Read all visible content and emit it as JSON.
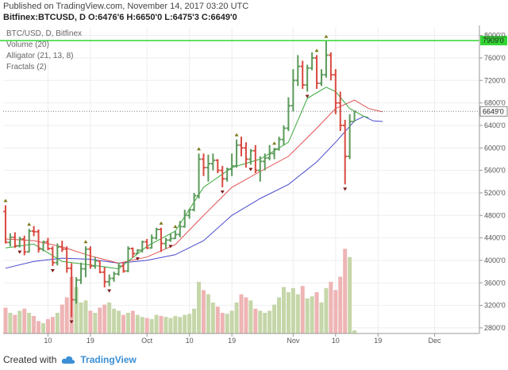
{
  "header": {
    "published": "Published on TradingView.com, November 14, 2017 03:20 UTC",
    "symbol_line": "Bitfinex:BTCUSD, D  O:6476'6 H:6650'0 L:6475'3 C:6649'0"
  },
  "footer": {
    "prefix": "Created with",
    "brand": "TradingView"
  },
  "colors": {
    "up": "#5b9a5b",
    "down": "#d9493f",
    "jaw": "#4a4ad0",
    "teeth": "#e05050",
    "lips": "#3aa83a",
    "vol_up": "#c5d6a8",
    "vol_down": "#eeb4b4",
    "hline": "#33d633",
    "price_line": "#808080"
  },
  "chart_data": {
    "type": "candlestick-ohlc",
    "legend": [
      "BTC/USD, D, Bitfinex",
      "Volume (20)",
      "Alligator (21, 13, 8)",
      "Fractals (2)"
    ],
    "y_ticks": [
      2800,
      3200,
      3600,
      4000,
      4400,
      4800,
      5200,
      5600,
      6000,
      6400,
      6800,
      7200,
      7600,
      8000
    ],
    "y_tick_labels": [
      "2800'0",
      "3200'0",
      "3600'0",
      "4000'0",
      "4400'0",
      "4800'0",
      "5200'0",
      "5600'0",
      "6000'0",
      "6400'0",
      "6800'0",
      "7200'0",
      "7600'0",
      "8000'0"
    ],
    "ylim": [
      2700,
      8150
    ],
    "x_labels": [
      {
        "label": "10",
        "idx": 9
      },
      {
        "label": "19",
        "idx": 18
      },
      {
        "label": "Oct",
        "idx": 30
      },
      {
        "label": "10",
        "idx": 39
      },
      {
        "label": "19",
        "idx": 48
      },
      {
        "label": "Nov",
        "idx": 61
      },
      {
        "label": "10",
        "idx": 70
      },
      {
        "label": "19",
        "idx": 79
      },
      {
        "label": "Dec",
        "idx": 91
      }
    ],
    "x_count": 101,
    "horizontal_line": {
      "value": 7909,
      "label": "7909'0"
    },
    "last_price": {
      "value": 6649,
      "label": "6649'0"
    },
    "ohlc": [
      [
        4870,
        4980,
        4300,
        4320
      ],
      [
        4320,
        4480,
        4250,
        4410
      ],
      [
        4410,
        4500,
        4220,
        4260
      ],
      [
        4260,
        4420,
        4230,
        4380
      ],
      [
        4380,
        4440,
        4090,
        4150
      ],
      [
        4150,
        4560,
        4140,
        4520
      ],
      [
        4520,
        4610,
        4430,
        4510
      ],
      [
        4510,
        4550,
        4140,
        4200
      ],
      [
        4200,
        4350,
        4160,
        4330
      ],
      [
        4330,
        4400,
        4180,
        4210
      ],
      [
        4210,
        4250,
        3900,
        3960
      ],
      [
        3960,
        4300,
        3910,
        4240
      ],
      [
        4240,
        4350,
        4150,
        4200
      ],
      [
        4200,
        4250,
        3780,
        3860
      ],
      [
        3860,
        3950,
        2990,
        3300
      ],
      [
        3300,
        3700,
        3230,
        3650
      ],
      [
        3650,
        3960,
        3580,
        3850
      ],
      [
        3850,
        4250,
        3700,
        4200
      ],
      [
        4200,
        4250,
        3850,
        3900
      ],
      [
        3900,
        4060,
        3850,
        3990
      ],
      [
        3990,
        4000,
        3770,
        3790
      ],
      [
        3790,
        3880,
        3520,
        3620
      ],
      [
        3620,
        3750,
        3540,
        3680
      ],
      [
        3680,
        3800,
        3620,
        3760
      ],
      [
        3760,
        3960,
        3730,
        3900
      ],
      [
        3900,
        3960,
        3780,
        3810
      ],
      [
        3810,
        4250,
        3790,
        4210
      ],
      [
        4210,
        4230,
        4050,
        4120
      ],
      [
        4120,
        4200,
        4110,
        4180
      ],
      [
        4180,
        4350,
        4140,
        4330
      ],
      [
        4330,
        4380,
        4200,
        4220
      ],
      [
        4220,
        4460,
        4210,
        4400
      ],
      [
        4400,
        4580,
        4370,
        4550
      ],
      [
        4550,
        4580,
        4150,
        4300
      ],
      [
        4300,
        4400,
        4200,
        4360
      ],
      [
        4360,
        4480,
        4330,
        4390
      ],
      [
        4390,
        4520,
        4380,
        4460
      ],
      [
        4460,
        4700,
        4410,
        4600
      ],
      [
        4600,
        4900,
        4580,
        4800
      ],
      [
        4800,
        4920,
        4740,
        4900
      ],
      [
        4900,
        5200,
        4870,
        5150
      ],
      [
        5150,
        5900,
        5100,
        5800
      ],
      [
        5800,
        5900,
        5500,
        5650
      ],
      [
        5650,
        5880,
        5400,
        5720
      ],
      [
        5720,
        5900,
        5600,
        5780
      ],
      [
        5780,
        5800,
        5550,
        5600
      ],
      [
        5600,
        5680,
        5300,
        5450
      ],
      [
        5450,
        5650,
        5400,
        5620
      ],
      [
        5620,
        5900,
        5500,
        5680
      ],
      [
        5680,
        6150,
        5650,
        6050
      ],
      [
        6050,
        6200,
        5850,
        6000
      ],
      [
        6000,
        6100,
        5650,
        5800
      ],
      [
        5800,
        5980,
        5700,
        5950
      ],
      [
        5950,
        6050,
        5550,
        5600
      ],
      [
        5600,
        5850,
        5400,
        5760
      ],
      [
        5760,
        5900,
        5600,
        5820
      ],
      [
        5820,
        6050,
        5780,
        5900
      ],
      [
        5900,
        6000,
        5800,
        5980
      ],
      [
        5980,
        6200,
        5950,
        6150
      ],
      [
        6150,
        6400,
        6050,
        6350
      ],
      [
        6350,
        6900,
        6300,
        6750
      ],
      [
        6750,
        7400,
        6650,
        7200
      ],
      [
        7200,
        7650,
        7100,
        7450
      ],
      [
        7450,
        7550,
        7050,
        7120
      ],
      [
        7120,
        7480,
        7000,
        7420
      ],
      [
        7420,
        7700,
        7380,
        7600
      ],
      [
        7600,
        7650,
        7050,
        7150
      ],
      [
        7150,
        7400,
        7100,
        7300
      ],
      [
        7300,
        7900,
        7250,
        7650
      ],
      [
        7650,
        7700,
        7200,
        7300
      ],
      [
        7300,
        7400,
        6600,
        6800
      ],
      [
        6800,
        7000,
        6300,
        6400
      ],
      [
        6400,
        6500,
        5350,
        5850
      ],
      [
        5850,
        6600,
        5800,
        6470
      ],
      [
        6470,
        6650,
        6470,
        6649
      ]
    ],
    "volume": [
      0.25,
      0.2,
      0.18,
      0.22,
      0.24,
      0.2,
      0.17,
      0.12,
      0.1,
      0.14,
      0.16,
      0.2,
      0.28,
      0.35,
      0.55,
      0.45,
      0.3,
      0.32,
      0.22,
      0.2,
      0.25,
      0.28,
      0.3,
      0.24,
      0.22,
      0.18,
      0.2,
      0.22,
      0.18,
      0.16,
      0.15,
      0.14,
      0.18,
      0.17,
      0.16,
      0.15,
      0.17,
      0.16,
      0.18,
      0.19,
      0.24,
      0.5,
      0.42,
      0.38,
      0.3,
      0.26,
      0.2,
      0.19,
      0.22,
      0.3,
      0.38,
      0.35,
      0.32,
      0.24,
      0.22,
      0.2,
      0.22,
      0.28,
      0.35,
      0.45,
      0.4,
      0.44,
      0.38,
      0.46,
      0.34,
      0.36,
      0.4,
      0.3,
      0.44,
      0.5,
      0.42,
      0.55,
      0.82,
      0.74,
      0.03
    ],
    "jaw": [
      [
        0,
        3860
      ],
      [
        6,
        3980
      ],
      [
        12,
        4040
      ],
      [
        18,
        4020
      ],
      [
        24,
        3950
      ],
      [
        30,
        4000
      ],
      [
        36,
        4100
      ],
      [
        42,
        4350
      ],
      [
        48,
        4800
      ],
      [
        54,
        5100
      ],
      [
        60,
        5350
      ],
      [
        66,
        5750
      ],
      [
        70,
        6100
      ],
      [
        74,
        6480
      ],
      [
        76,
        6560
      ],
      [
        78,
        6480
      ],
      [
        80,
        6470
      ]
    ],
    "teeth": [
      [
        0,
        4380
      ],
      [
        6,
        4350
      ],
      [
        12,
        4240
      ],
      [
        18,
        4080
      ],
      [
        24,
        3950
      ],
      [
        30,
        4060
      ],
      [
        36,
        4280
      ],
      [
        42,
        4800
      ],
      [
        48,
        5300
      ],
      [
        54,
        5580
      ],
      [
        60,
        5850
      ],
      [
        66,
        6350
      ],
      [
        70,
        6700
      ],
      [
        74,
        6850
      ],
      [
        77,
        6700
      ],
      [
        80,
        6640
      ]
    ],
    "lips": [
      [
        0,
        4220
      ],
      [
        6,
        4290
      ],
      [
        12,
        3980
      ],
      [
        18,
        3920
      ],
      [
        24,
        3850
      ],
      [
        30,
        4250
      ],
      [
        36,
        4520
      ],
      [
        42,
        5300
      ],
      [
        48,
        5650
      ],
      [
        54,
        5800
      ],
      [
        60,
        6100
      ],
      [
        64,
        6880
      ],
      [
        68,
        7080
      ],
      [
        70,
        7000
      ],
      [
        73,
        6700
      ],
      [
        76,
        6560
      ],
      [
        77,
        6540
      ]
    ],
    "fractals": [
      {
        "idx": 0,
        "up": true
      },
      {
        "idx": 5,
        "up": true
      },
      {
        "idx": 3,
        "up": false
      },
      {
        "idx": 10,
        "up": false
      },
      {
        "idx": 14,
        "up": false
      },
      {
        "idx": 17,
        "up": true
      },
      {
        "idx": 22,
        "up": false
      },
      {
        "idx": 28,
        "up": false
      },
      {
        "idx": 33,
        "up": true
      },
      {
        "idx": 36,
        "up": true
      },
      {
        "idx": 35,
        "up": false
      },
      {
        "idx": 41,
        "up": true
      },
      {
        "idx": 46,
        "up": false
      },
      {
        "idx": 49,
        "up": true
      },
      {
        "idx": 52,
        "up": false
      },
      {
        "idx": 57,
        "up": true
      },
      {
        "idx": 66,
        "up": true
      },
      {
        "idx": 64,
        "up": false
      },
      {
        "idx": 68,
        "up": true
      },
      {
        "idx": 72,
        "up": false
      }
    ]
  }
}
